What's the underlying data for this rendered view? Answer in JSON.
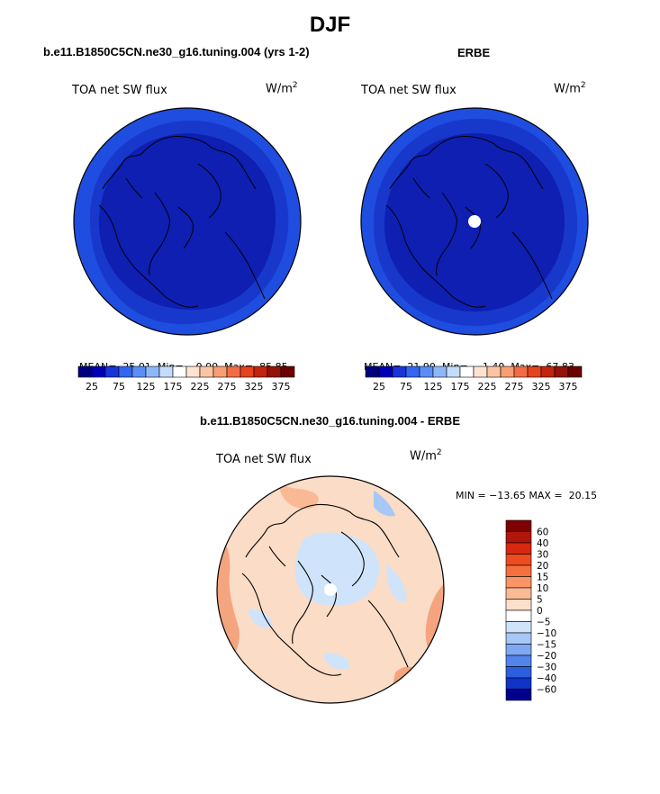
{
  "page": {
    "title": "DJF",
    "lower_title": "b.e11.B1850C5CN.ne30_g16.tuning.004 - ERBE"
  },
  "panels": [
    {
      "title": "b.e11.B1850C5CN.ne30_g16.tuning.004 (yrs 1-2)",
      "field": "TOA net SW flux",
      "units": "W/m",
      "units_sup": "2",
      "stats": {
        "mean_label": "MEAN=",
        "mean": "25.01",
        "min_label": "Min=",
        "min": "0.00",
        "max_label": "Max=",
        "max": "85.85"
      },
      "colorbar_ticks": [
        "25",
        "75",
        "125",
        "175",
        "225",
        "275",
        "325",
        "375"
      ]
    },
    {
      "title": "ERBE",
      "field": "TOA net SW flux",
      "units": "W/m",
      "units_sup": "2",
      "stats": {
        "mean_label": "MEAN=",
        "mean": "21.90",
        "min_label": "Min=",
        "min": "−1.40",
        "max_label": "Max=",
        "max": "67.83"
      },
      "colorbar_ticks": [
        "25",
        "75",
        "125",
        "175",
        "225",
        "275",
        "325",
        "375"
      ]
    }
  ],
  "diff_panel": {
    "field": "TOA net SW flux",
    "units": "W/m",
    "units_sup": "2",
    "minmax_text": "MIN = −13.65 MAX =  20.15",
    "colorbar_labels": [
      "60",
      "40",
      "30",
      "20",
      "15",
      "10",
      "5",
      "0",
      "−5",
      "−10",
      "−15",
      "−20",
      "−30",
      "−40",
      "−60"
    ]
  },
  "colors": {
    "abs_scale": [
      "#00007f",
      "#0000b8",
      "#1a33d9",
      "#3366ee",
      "#5b8ef5",
      "#8fb7f8",
      "#c4dcfb",
      "#ffffff",
      "#fde3d0",
      "#fbc4a2",
      "#f79e73",
      "#f26c46",
      "#e6431f",
      "#c2240d",
      "#941208",
      "#6b0000"
    ],
    "diff_scale": [
      "#7f0000",
      "#b0160a",
      "#d8280f",
      "#f04a20",
      "#f5703e",
      "#f99467",
      "#fbb994",
      "#fde0cb",
      "#ffffff",
      "#cfe4fb",
      "#a7c8f7",
      "#7ea8f2",
      "#5284ec",
      "#2c5ee0",
      "#0f35c8",
      "#00008a"
    ],
    "polar_outer": "#1e4ddf",
    "polar_mid": "#1838cc",
    "polar_inner": "#0e1fb2",
    "diff_base": "#fbdcc6",
    "diff_warm": "#f4a47e",
    "diff_cool": "#cfe4fb"
  }
}
